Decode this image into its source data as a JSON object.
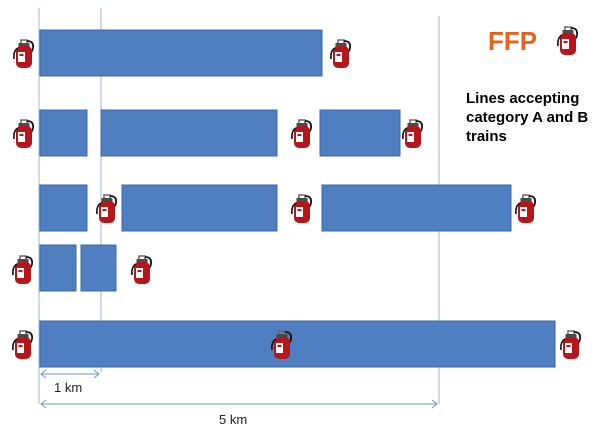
{
  "title": "FFP",
  "description": [
    "Lines accepting",
    "category A and B",
    "trains"
  ],
  "scale": {
    "short_label": "1 km",
    "long_label": "5 km"
  },
  "icon": "fire-extinguisher-icon",
  "colors": {
    "segment_fill": "#4f7fc0",
    "segment_stroke": "#3b6aa7",
    "title": "#e0651f",
    "extinguisher": "#b4161b",
    "guide": "#9fb6d3"
  }
}
